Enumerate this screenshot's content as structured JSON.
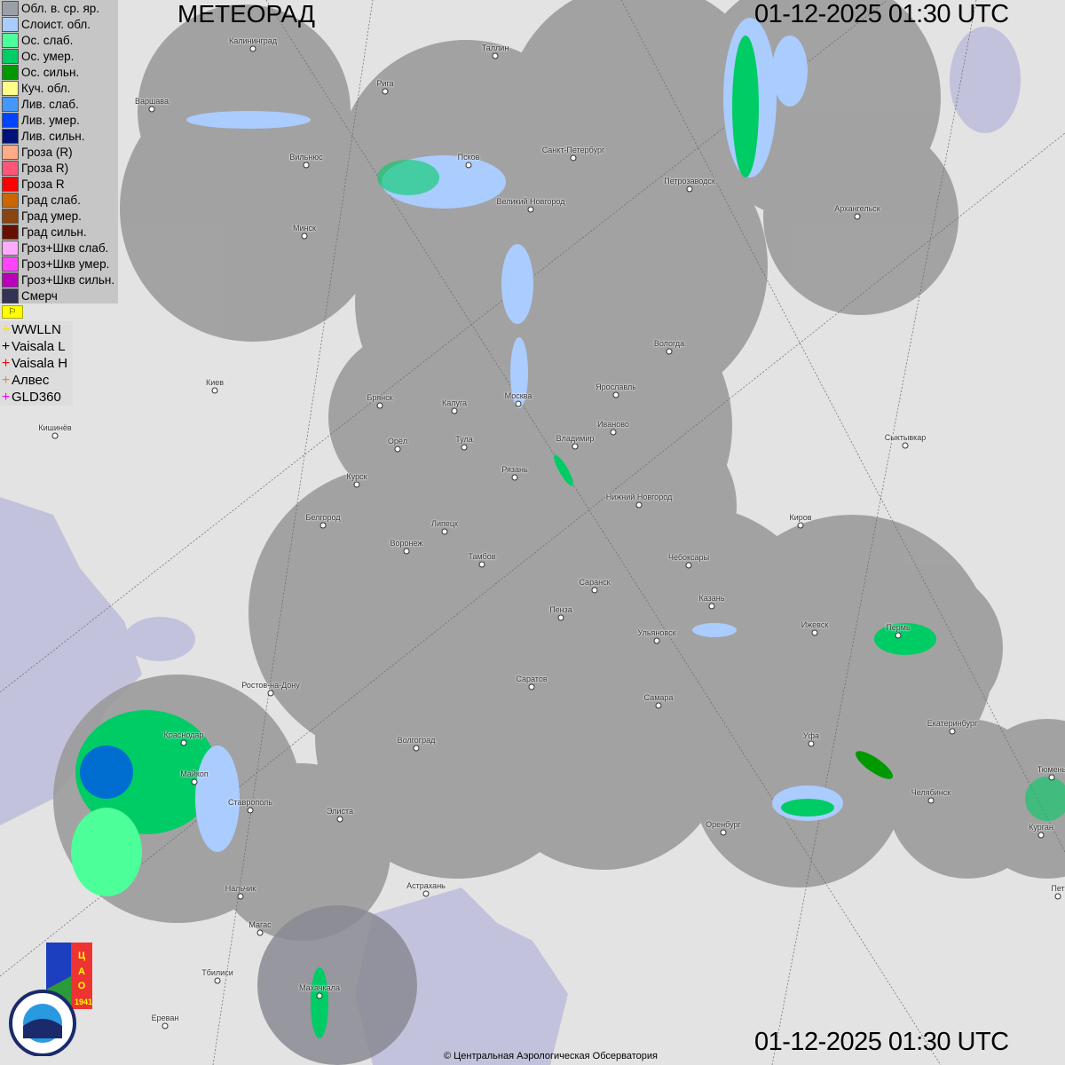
{
  "title": "МЕТЕОРАД",
  "timestamp": "01-12-2025  01:30 UTC",
  "copyright": "© Центральная Аэрологическая Обсерватория",
  "legend": [
    {
      "label": "Обл. в. ср. яр.",
      "color": "#9aa0a6"
    },
    {
      "label": "Слоист. обл.",
      "color": "#aaccff"
    },
    {
      "label": "Ос. слаб.",
      "color": "#4cff99"
    },
    {
      "label": "Ос. умер.",
      "color": "#00cc66"
    },
    {
      "label": "Ос. сильн.",
      "color": "#009900"
    },
    {
      "label": "Куч. обл.",
      "color": "#ffff88"
    },
    {
      "label": "Лив. слаб.",
      "color": "#4499ff"
    },
    {
      "label": "Лив. умер.",
      "color": "#0044ff"
    },
    {
      "label": "Лив. сильн.",
      "color": "#001177"
    },
    {
      "label": "Гроза (R)",
      "color": "#ffaa88"
    },
    {
      "label": "Гроза R)",
      "color": "#ff5577"
    },
    {
      "label": "Гроза R",
      "color": "#ff0000"
    },
    {
      "label": "Град слаб.",
      "color": "#cc6600"
    },
    {
      "label": "Град умер.",
      "color": "#884411"
    },
    {
      "label": "Град сильн.",
      "color": "#661100"
    },
    {
      "label": "Гроз+Шкв слаб.",
      "color": "#ffaaff"
    },
    {
      "label": "Гроз+Шкв умер.",
      "color": "#ff44ff"
    },
    {
      "label": "Гроз+Шкв сильн.",
      "color": "#bb00bb"
    },
    {
      "label": "Смерч",
      "color": "#333355"
    }
  ],
  "flag_icon": "flag-icon",
  "lightning_networks": [
    {
      "label": "WWLLN",
      "color": "#ffdd00"
    },
    {
      "label": "Vaisala L",
      "color": "#000000"
    },
    {
      "label": "Vaisala H",
      "color": "#ff0000"
    },
    {
      "label": "Алвес",
      "color": "#ff8800"
    },
    {
      "label": "GLD360",
      "color": "#ff00ff"
    }
  ],
  "cities": [
    "Калининград",
    "Таллин",
    "Рига",
    "Варшава",
    "Санкт-Петербург",
    "Псков",
    "Вильнюс",
    "Петрозаводск",
    "Великий Новгород",
    "Архангельск",
    "Минск",
    "Вологда",
    "Киев",
    "Брянск",
    "Калуга",
    "Москва",
    "Ярославль",
    "Иваново",
    "Кишинёв",
    "Орёл",
    "Тула",
    "Владимир",
    "Сыктывкар",
    "Рязань",
    "Курск",
    "Нижний Новгород",
    "Белгород",
    "Киров",
    "Липецк",
    "Воронеж",
    "Тамбов",
    "Чебоксары",
    "Саранск",
    "Казань",
    "Пенза",
    "Ижевск",
    "Пермь",
    "Ульяновск",
    "Ростов-на-Дону",
    "Саратов",
    "Самара",
    "Екатеринбург",
    "Краснодар",
    "Уфа",
    "Волгоград",
    "Майкоп",
    "Тюмень",
    "Челябинск",
    "Ставрополь",
    "Элиста",
    "Оренбург",
    "Курган",
    "Астрахань",
    "Нальчик",
    "Пет",
    "Магас",
    "Тбилиси",
    "Махачкала",
    "Ереван"
  ],
  "logos": {
    "cao": "ЦАО 1941",
    "roshydromet": "РОСГИДРОМЕТ ROSHYDROMET"
  },
  "colors": {
    "radar_coverage": "#9b9b9b",
    "water": "#c2c2dc",
    "land": "#e3e3e3"
  }
}
